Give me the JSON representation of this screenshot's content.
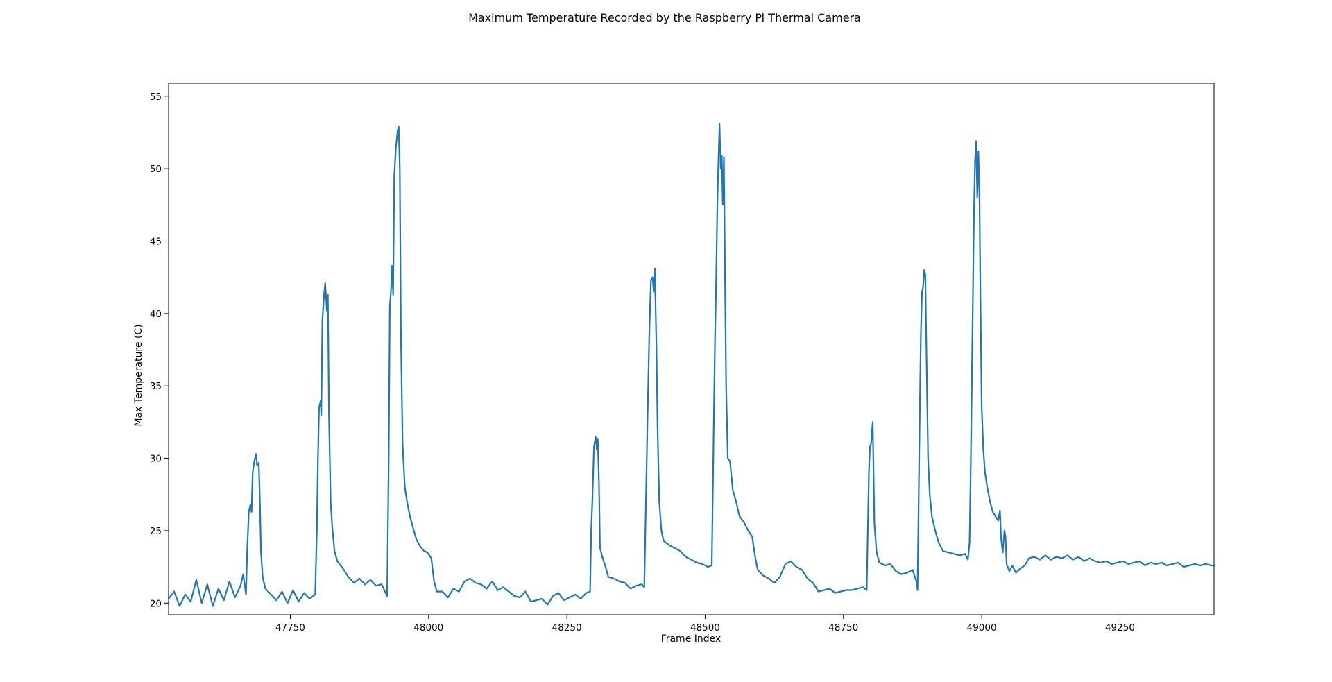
{
  "chart_data": {
    "type": "line",
    "title": "Maximum Temperature Recorded by the Raspberry Pi Thermal Camera",
    "xlabel": "Frame Index",
    "ylabel": "Max Temperature (C)",
    "xlim": [
      47530,
      49420
    ],
    "ylim": [
      19.2,
      55.9
    ],
    "xticks": [
      47750,
      48000,
      48250,
      48500,
      48750,
      49000,
      49250
    ],
    "yticks": [
      20,
      25,
      30,
      35,
      40,
      45,
      50,
      55
    ],
    "grid": false,
    "color": "#1f77b4",
    "series": [
      {
        "values": [
          [
            47530,
            20.3
          ],
          [
            47540,
            20.8
          ],
          [
            47550,
            19.8
          ],
          [
            47560,
            20.6
          ],
          [
            47570,
            20.1
          ],
          [
            47580,
            21.6
          ],
          [
            47590,
            20.0
          ],
          [
            47600,
            21.3
          ],
          [
            47610,
            19.8
          ],
          [
            47620,
            21.0
          ],
          [
            47630,
            20.2
          ],
          [
            47640,
            21.5
          ],
          [
            47650,
            20.4
          ],
          [
            47660,
            21.2
          ],
          [
            47665,
            22.0
          ],
          [
            47670,
            20.6
          ],
          [
            47672,
            23.5
          ],
          [
            47675,
            26.3
          ],
          [
            47678,
            26.8
          ],
          [
            47680,
            26.3
          ],
          [
            47682,
            29.0
          ],
          [
            47685,
            29.8
          ],
          [
            47688,
            30.3
          ],
          [
            47690,
            29.5
          ],
          [
            47693,
            29.7
          ],
          [
            47695,
            27.0
          ],
          [
            47697,
            23.5
          ],
          [
            47700,
            21.8
          ],
          [
            47705,
            21.0
          ],
          [
            47715,
            20.6
          ],
          [
            47725,
            20.2
          ],
          [
            47735,
            20.8
          ],
          [
            47745,
            20.0
          ],
          [
            47755,
            20.9
          ],
          [
            47765,
            20.1
          ],
          [
            47775,
            20.7
          ],
          [
            47785,
            20.3
          ],
          [
            47795,
            20.6
          ],
          [
            47798,
            25.0
          ],
          [
            47800,
            30.0
          ],
          [
            47802,
            33.5
          ],
          [
            47805,
            34.0
          ],
          [
            47806,
            33.0
          ],
          [
            47808,
            39.5
          ],
          [
            47811,
            41.3
          ],
          [
            47813,
            42.1
          ],
          [
            47815,
            41.0
          ],
          [
            47816,
            40.2
          ],
          [
            47818,
            41.3
          ],
          [
            47820,
            33.0
          ],
          [
            47823,
            27.0
          ],
          [
            47826,
            25.2
          ],
          [
            47830,
            23.6
          ],
          [
            47835,
            22.9
          ],
          [
            47845,
            22.4
          ],
          [
            47855,
            21.8
          ],
          [
            47865,
            21.4
          ],
          [
            47875,
            21.7
          ],
          [
            47885,
            21.3
          ],
          [
            47895,
            21.6
          ],
          [
            47905,
            21.2
          ],
          [
            47915,
            21.3
          ],
          [
            47925,
            20.5
          ],
          [
            47928,
            30.0
          ],
          [
            47930,
            40.5
          ],
          [
            47932,
            41.5
          ],
          [
            47934,
            43.3
          ],
          [
            47936,
            41.3
          ],
          [
            47938,
            49.5
          ],
          [
            47941,
            51.5
          ],
          [
            47944,
            52.6
          ],
          [
            47946,
            52.9
          ],
          [
            47948,
            50.0
          ],
          [
            47950,
            38.5
          ],
          [
            47953,
            31.0
          ],
          [
            47957,
            28.0
          ],
          [
            47962,
            26.8
          ],
          [
            47967,
            25.9
          ],
          [
            47972,
            25.2
          ],
          [
            47978,
            24.4
          ],
          [
            47985,
            23.9
          ],
          [
            47992,
            23.6
          ],
          [
            47998,
            23.5
          ],
          [
            48005,
            23.1
          ],
          [
            48010,
            21.5
          ],
          [
            48015,
            20.8
          ],
          [
            48025,
            20.8
          ],
          [
            48035,
            20.4
          ],
          [
            48045,
            21.0
          ],
          [
            48055,
            20.8
          ],
          [
            48065,
            21.5
          ],
          [
            48075,
            21.7
          ],
          [
            48085,
            21.4
          ],
          [
            48095,
            21.3
          ],
          [
            48105,
            21.0
          ],
          [
            48115,
            21.5
          ],
          [
            48125,
            20.9
          ],
          [
            48135,
            21.1
          ],
          [
            48145,
            20.8
          ],
          [
            48155,
            20.5
          ],
          [
            48165,
            20.4
          ],
          [
            48175,
            20.8
          ],
          [
            48185,
            20.1
          ],
          [
            48195,
            20.2
          ],
          [
            48205,
            20.3
          ],
          [
            48215,
            19.9
          ],
          [
            48225,
            20.5
          ],
          [
            48235,
            20.7
          ],
          [
            48245,
            20.2
          ],
          [
            48255,
            20.4
          ],
          [
            48265,
            20.6
          ],
          [
            48275,
            20.3
          ],
          [
            48285,
            20.7
          ],
          [
            48292,
            20.8
          ],
          [
            48294,
            25.0
          ],
          [
            48296,
            27.0
          ],
          [
            48299,
            30.8
          ],
          [
            48302,
            31.5
          ],
          [
            48304,
            30.6
          ],
          [
            48306,
            31.3
          ],
          [
            48308,
            28.5
          ],
          [
            48310,
            23.8
          ],
          [
            48314,
            23.2
          ],
          [
            48320,
            22.5
          ],
          [
            48325,
            21.8
          ],
          [
            48335,
            21.7
          ],
          [
            48345,
            21.5
          ],
          [
            48355,
            21.4
          ],
          [
            48365,
            21.0
          ],
          [
            48375,
            21.2
          ],
          [
            48385,
            21.3
          ],
          [
            48390,
            21.1
          ],
          [
            48393,
            27.0
          ],
          [
            48396,
            33.0
          ],
          [
            48399,
            38.5
          ],
          [
            48402,
            42.3
          ],
          [
            48405,
            42.5
          ],
          [
            48407,
            41.5
          ],
          [
            48409,
            43.1
          ],
          [
            48412,
            37.5
          ],
          [
            48414,
            32.0
          ],
          [
            48417,
            27.0
          ],
          [
            48421,
            25.0
          ],
          [
            48425,
            24.3
          ],
          [
            48435,
            24.0
          ],
          [
            48445,
            23.8
          ],
          [
            48455,
            23.6
          ],
          [
            48465,
            23.2
          ],
          [
            48475,
            23.0
          ],
          [
            48485,
            22.8
          ],
          [
            48495,
            22.7
          ],
          [
            48505,
            22.5
          ],
          [
            48512,
            22.6
          ],
          [
            48514,
            28.0
          ],
          [
            48516,
            33.5
          ],
          [
            48518,
            38.5
          ],
          [
            48520,
            42.5
          ],
          [
            48522,
            47.5
          ],
          [
            48524,
            50.5
          ],
          [
            48526,
            53.1
          ],
          [
            48528,
            50.0
          ],
          [
            48530,
            50.9
          ],
          [
            48532,
            47.5
          ],
          [
            48534,
            50.8
          ],
          [
            48536,
            42.5
          ],
          [
            48538,
            35.0
          ],
          [
            48541,
            30.0
          ],
          [
            48545,
            29.8
          ],
          [
            48550,
            27.8
          ],
          [
            48556,
            27.0
          ],
          [
            48562,
            26.0
          ],
          [
            48570,
            25.6
          ],
          [
            48578,
            25.0
          ],
          [
            48585,
            24.6
          ],
          [
            48590,
            23.3
          ],
          [
            48595,
            22.3
          ],
          [
            48605,
            21.9
          ],
          [
            48615,
            21.7
          ],
          [
            48625,
            21.4
          ],
          [
            48635,
            21.8
          ],
          [
            48645,
            22.7
          ],
          [
            48655,
            22.9
          ],
          [
            48665,
            22.5
          ],
          [
            48675,
            22.3
          ],
          [
            48685,
            21.7
          ],
          [
            48695,
            21.4
          ],
          [
            48705,
            20.8
          ],
          [
            48715,
            20.9
          ],
          [
            48725,
            21.0
          ],
          [
            48735,
            20.7
          ],
          [
            48745,
            20.8
          ],
          [
            48755,
            20.9
          ],
          [
            48765,
            20.9
          ],
          [
            48775,
            21.0
          ],
          [
            48785,
            21.1
          ],
          [
            48792,
            20.9
          ],
          [
            48794,
            25.0
          ],
          [
            48796,
            29.0
          ],
          [
            48798,
            30.8
          ],
          [
            48800,
            31.0
          ],
          [
            48803,
            32.5
          ],
          [
            48806,
            25.5
          ],
          [
            48810,
            23.5
          ],
          [
            48815,
            22.8
          ],
          [
            48825,
            22.6
          ],
          [
            48835,
            22.7
          ],
          [
            48845,
            22.2
          ],
          [
            48855,
            22.0
          ],
          [
            48865,
            22.1
          ],
          [
            48875,
            22.3
          ],
          [
            48882,
            21.5
          ],
          [
            48884,
            20.9
          ],
          [
            48886,
            27.0
          ],
          [
            48888,
            33.0
          ],
          [
            48890,
            38.5
          ],
          [
            48892,
            41.5
          ],
          [
            48894,
            41.8
          ],
          [
            48896,
            43.0
          ],
          [
            48898,
            42.7
          ],
          [
            48900,
            37.5
          ],
          [
            48903,
            30.0
          ],
          [
            48906,
            27.5
          ],
          [
            48910,
            26.0
          ],
          [
            48916,
            25.0
          ],
          [
            48922,
            24.2
          ],
          [
            48930,
            23.6
          ],
          [
            48940,
            23.5
          ],
          [
            48950,
            23.4
          ],
          [
            48960,
            23.3
          ],
          [
            48970,
            23.4
          ],
          [
            48975,
            23.0
          ],
          [
            48978,
            24.2
          ],
          [
            48980,
            29.0
          ],
          [
            48982,
            35.0
          ],
          [
            48984,
            41.0
          ],
          [
            48986,
            46.8
          ],
          [
            48988,
            50.5
          ],
          [
            48990,
            51.9
          ],
          [
            48992,
            48.0
          ],
          [
            48994,
            51.2
          ],
          [
            48996,
            48.0
          ],
          [
            48998,
            40.0
          ],
          [
            49000,
            33.5
          ],
          [
            49003,
            30.5
          ],
          [
            49006,
            29.0
          ],
          [
            49010,
            28.0
          ],
          [
            49015,
            27.0
          ],
          [
            49020,
            26.3
          ],
          [
            49025,
            26.0
          ],
          [
            49030,
            25.7
          ],
          [
            49033,
            26.4
          ],
          [
            49035,
            24.5
          ],
          [
            49038,
            23.5
          ],
          [
            49041,
            25.0
          ],
          [
            49043,
            24.6
          ],
          [
            49045,
            22.7
          ],
          [
            49050,
            22.2
          ],
          [
            49055,
            22.6
          ],
          [
            49062,
            22.1
          ],
          [
            49070,
            22.4
          ],
          [
            49078,
            22.6
          ],
          [
            49085,
            23.1
          ],
          [
            49095,
            23.2
          ],
          [
            49105,
            23.0
          ],
          [
            49115,
            23.3
          ],
          [
            49125,
            23.0
          ],
          [
            49135,
            23.2
          ],
          [
            49145,
            23.1
          ],
          [
            49155,
            23.3
          ],
          [
            49165,
            23.0
          ],
          [
            49175,
            23.2
          ],
          [
            49185,
            22.9
          ],
          [
            49195,
            23.1
          ],
          [
            49205,
            22.9
          ],
          [
            49215,
            22.8
          ],
          [
            49225,
            22.9
          ],
          [
            49235,
            22.7
          ],
          [
            49245,
            22.8
          ],
          [
            49255,
            22.9
          ],
          [
            49265,
            22.7
          ],
          [
            49275,
            22.8
          ],
          [
            49285,
            22.9
          ],
          [
            49295,
            22.6
          ],
          [
            49305,
            22.8
          ],
          [
            49315,
            22.7
          ],
          [
            49325,
            22.8
          ],
          [
            49335,
            22.6
          ],
          [
            49345,
            22.7
          ],
          [
            49355,
            22.8
          ],
          [
            49365,
            22.5
          ],
          [
            49375,
            22.6
          ],
          [
            49385,
            22.7
          ],
          [
            49395,
            22.6
          ],
          [
            49405,
            22.7
          ],
          [
            49415,
            22.6
          ],
          [
            49420,
            22.6
          ]
        ]
      }
    ]
  }
}
